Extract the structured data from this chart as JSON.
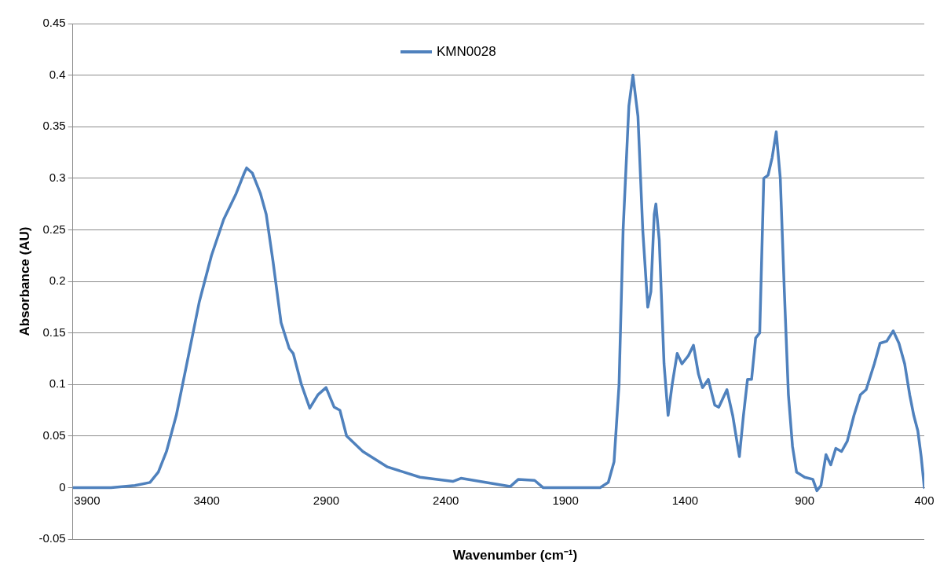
{
  "chart_data": {
    "type": "line",
    "xlabel": "Wavenumber (cm⁻¹)",
    "ylabel": "Absorbance (AU)",
    "xlim": [
      3960,
      400
    ],
    "xticks": [
      3900,
      3400,
      2900,
      2400,
      1900,
      1400,
      900,
      400
    ],
    "ylim": [
      -0.05,
      0.45
    ],
    "yticks": [
      -0.05,
      0,
      0.05,
      0.1,
      0.15,
      0.2,
      0.25,
      0.3,
      0.35,
      0.4,
      0.45
    ],
    "grid": "y",
    "legend": "top",
    "marker": "none",
    "line_style": "solid",
    "series": [
      {
        "name": "KMN0028",
        "color": "#4f81bd",
        "x": [
          3958,
          3800,
          3700,
          3637,
          3602,
          3568,
          3527,
          3483,
          3431,
          3380,
          3329,
          3277,
          3243,
          3233,
          3209,
          3175,
          3151,
          3123,
          3089,
          3055,
          3038,
          3004,
          2969,
          2935,
          2901,
          2867,
          2843,
          2815,
          2747,
          2644,
          2508,
          2371,
          2337,
          2234,
          2131,
          2097,
          2029,
          1994,
          1755,
          1721,
          1697,
          1676,
          1659,
          1635,
          1618,
          1597,
          1577,
          1556,
          1543,
          1529,
          1522,
          1508,
          1488,
          1471,
          1454,
          1433,
          1413,
          1386,
          1365,
          1344,
          1327,
          1303,
          1276,
          1259,
          1225,
          1201,
          1173,
          1156,
          1139,
          1122,
          1105,
          1088,
          1071,
          1053,
          1036,
          1019,
          1002,
          985,
          968,
          951,
          934,
          900,
          866,
          849,
          832,
          811,
          791,
          770,
          746,
          722,
          694,
          667,
          643,
          609,
          585,
          557,
          530,
          506,
          482,
          461,
          444,
          427,
          413,
          400
        ],
        "values": [
          0,
          0,
          0.002,
          0.005,
          0.015,
          0.035,
          0.07,
          0.12,
          0.18,
          0.225,
          0.26,
          0.285,
          0.305,
          0.31,
          0.305,
          0.285,
          0.265,
          0.22,
          0.16,
          0.135,
          0.13,
          0.1,
          0.077,
          0.09,
          0.097,
          0.078,
          0.075,
          0.05,
          0.035,
          0.02,
          0.01,
          0.006,
          0.009,
          0.005,
          0.001,
          0.008,
          0.007,
          0,
          0,
          0.005,
          0.025,
          0.1,
          0.25,
          0.37,
          0.4,
          0.36,
          0.25,
          0.175,
          0.19,
          0.265,
          0.275,
          0.24,
          0.12,
          0.07,
          0.1,
          0.13,
          0.12,
          0.128,
          0.138,
          0.11,
          0.097,
          0.105,
          0.08,
          0.078,
          0.095,
          0.07,
          0.03,
          0.07,
          0.105,
          0.105,
          0.145,
          0.15,
          0.3,
          0.303,
          0.32,
          0.345,
          0.3,
          0.19,
          0.09,
          0.04,
          0.015,
          0.01,
          0.008,
          -0.003,
          0.002,
          0.032,
          0.022,
          0.038,
          0.035,
          0.045,
          0.07,
          0.09,
          0.095,
          0.12,
          0.14,
          0.142,
          0.152,
          0.14,
          0.12,
          0.09,
          0.07,
          0.055,
          0.03,
          0
        ]
      }
    ]
  }
}
